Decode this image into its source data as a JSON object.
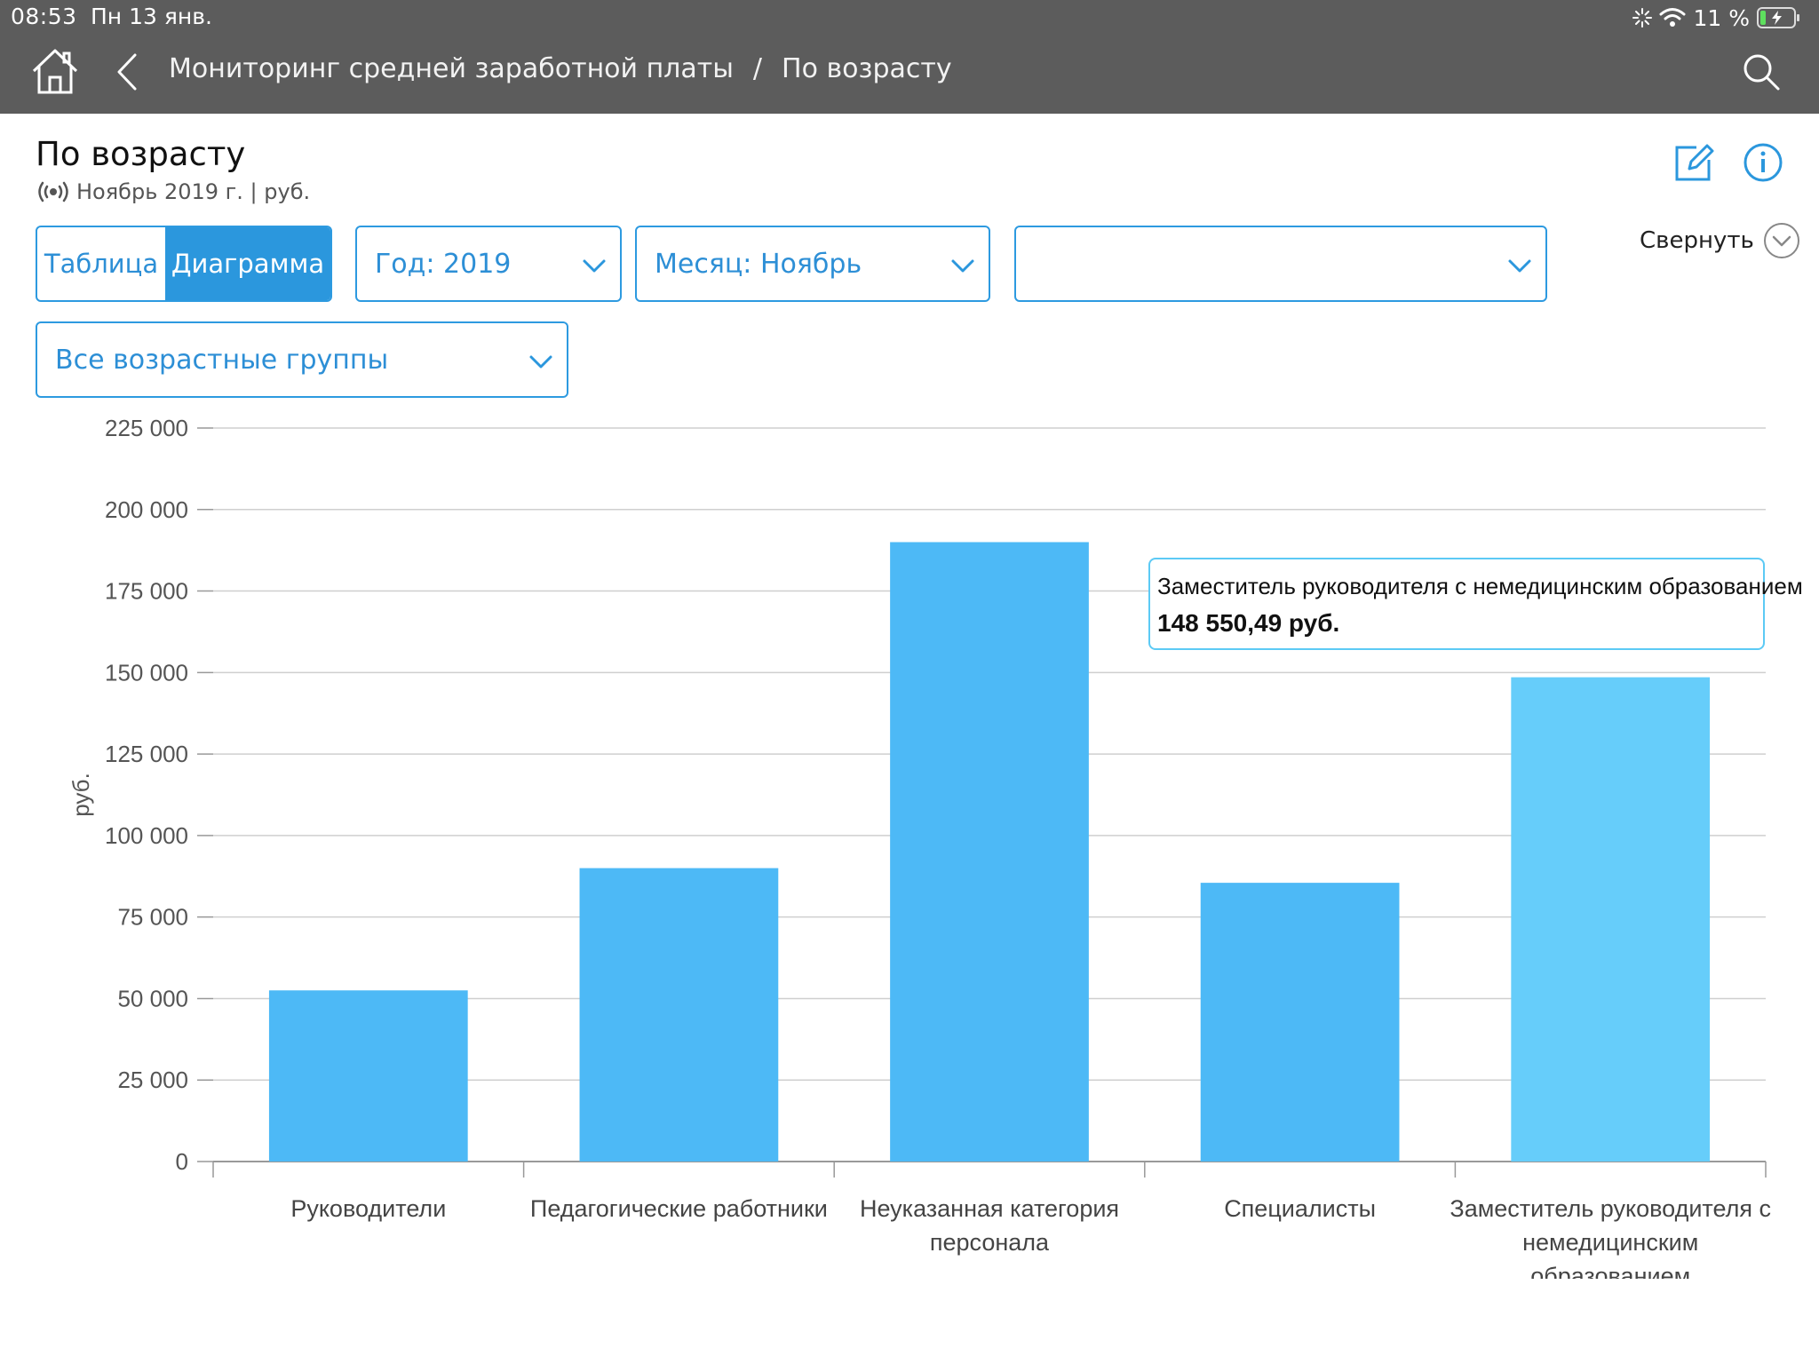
{
  "status_bar": {
    "time": "08:53",
    "date": "Пн 13 янв.",
    "battery": "11 %"
  },
  "nav": {
    "breadcrumb": [
      "Мониторинг средней заработной платы",
      "/",
      "По возрасту"
    ]
  },
  "header": {
    "title": "По возрасту",
    "subtitle": "Ноябрь 2019 г. | руб.",
    "collapse_label": "Свернуть"
  },
  "filters": {
    "view_table": "Таблица",
    "view_chart": "Диаграмма",
    "year": "Год: 2019",
    "month": "Месяц: Ноябрь",
    "extra": "",
    "age_group": "Все возрастные группы"
  },
  "colors": {
    "bar": "#4db9f6",
    "bar_highlight": "#66cdfa",
    "accent": "#2b97dd"
  },
  "chart_data": {
    "type": "bar",
    "ylabel": "руб.",
    "ylim": [
      0,
      225000
    ],
    "ytick_step": 25000,
    "yticks": [
      "0",
      "25 000",
      "50 000",
      "75 000",
      "100 000",
      "125 000",
      "150 000",
      "175 000",
      "200 000",
      "225 000"
    ],
    "grid": true,
    "categories": [
      [
        "Руководители"
      ],
      [
        "Педагогические работники"
      ],
      [
        "Неуказанная категория",
        "персонала"
      ],
      [
        "Специалисты"
      ],
      [
        "Заместитель руководителя с",
        "немедицинским",
        "образованием"
      ]
    ],
    "values": [
      52500,
      90000,
      190000,
      85500,
      148550.49
    ],
    "highlight_index": 4,
    "tooltip": {
      "name": "Заместитель руководителя с немедицинским образованием",
      "value": "148 550,49 руб."
    }
  }
}
